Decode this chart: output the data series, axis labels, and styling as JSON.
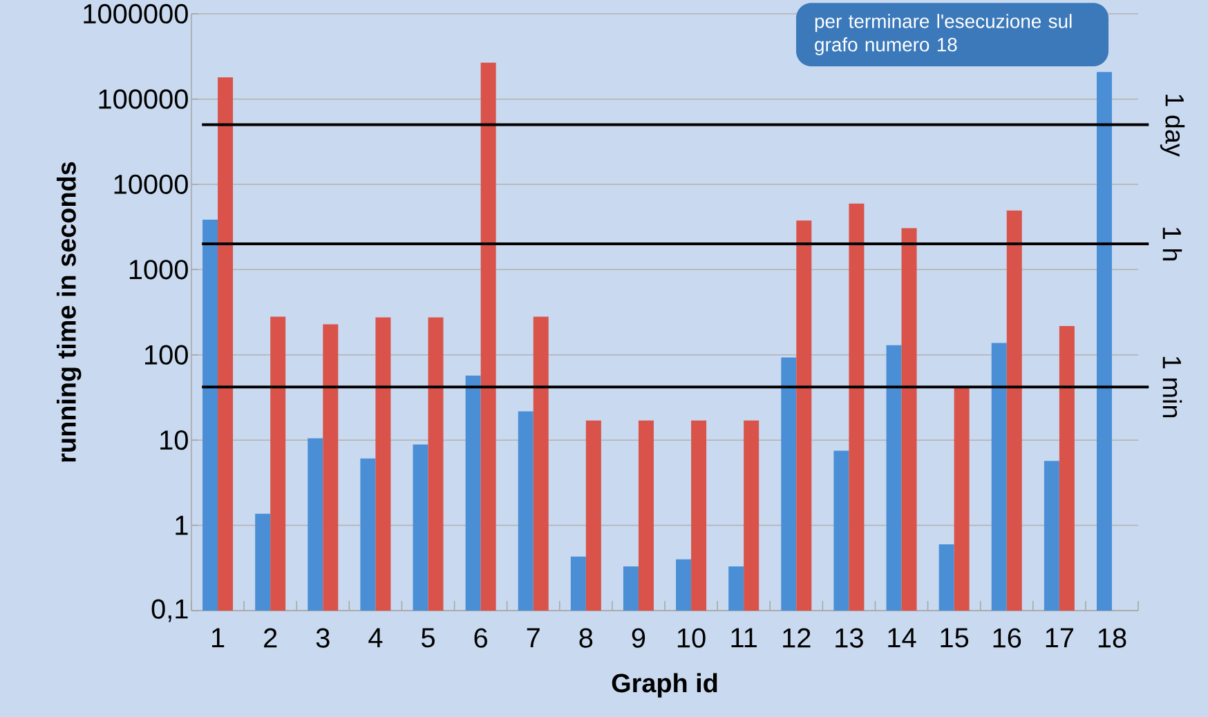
{
  "chart_data": {
    "type": "bar",
    "xlabel": "Graph id",
    "ylabel": "running time in seconds",
    "categories": [
      "1",
      "2",
      "3",
      "4",
      "5",
      "6",
      "7",
      "8",
      "9",
      "10",
      "11",
      "12",
      "13",
      "14",
      "15",
      "16",
      "17",
      "18"
    ],
    "series": [
      {
        "color": "#4a8fd6",
        "values": [
          3850,
          1.37,
          10.5,
          6.1,
          8.9,
          57,
          21.7,
          0.43,
          0.33,
          0.4,
          0.33,
          93,
          7.5,
          130,
          0.6,
          138,
          5.7,
          208000
        ]
      },
      {
        "color": "#d9534a",
        "values": [
          180000,
          280,
          228,
          275,
          275,
          267000,
          280,
          17,
          17,
          17,
          17,
          3770,
          5950,
          3060,
          42,
          4930,
          218,
          null
        ]
      }
    ],
    "log": "y",
    "ylim": [
      0.1,
      1000000
    ],
    "yticks": [
      {
        "value": 0.1,
        "label": "0,1"
      },
      1,
      10,
      100,
      1000,
      10000,
      100000,
      1000000
    ],
    "grid": "y",
    "ref_lines": [
      {
        "axis": "y",
        "value": 50000,
        "label": "1 day",
        "color": "#000000"
      },
      {
        "axis": "y",
        "value": 2000,
        "label": "1 h",
        "color": "#000000"
      },
      {
        "axis": "y",
        "value": 42,
        "label": "1 min",
        "color": "#000000"
      }
    ],
    "annotations": [
      "per terminare l'esecuzione sul grafo numero 18"
    ]
  }
}
